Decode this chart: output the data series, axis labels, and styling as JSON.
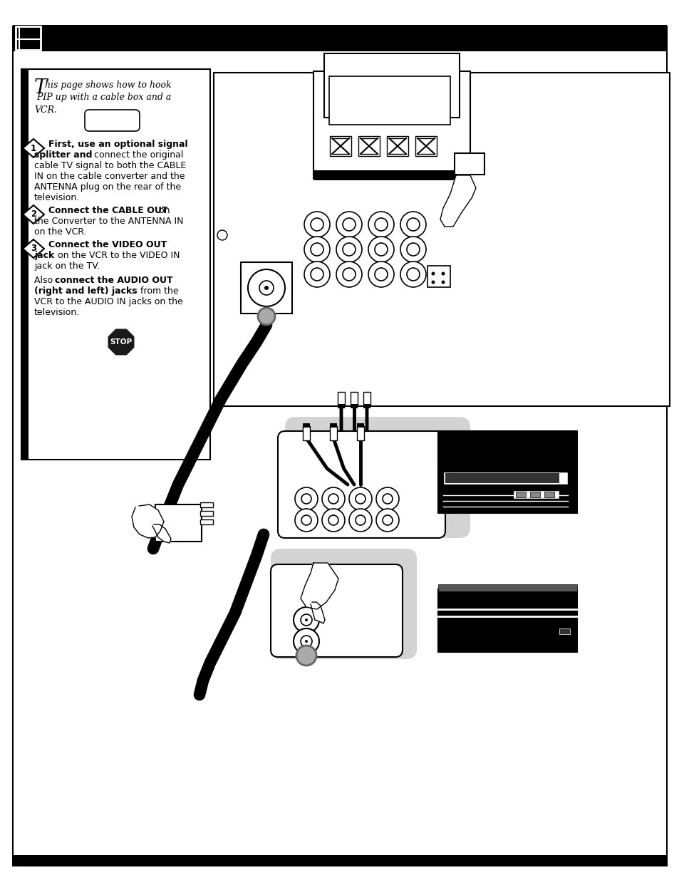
{
  "page_bg": "#ffffff",
  "title_text1": "his page shows how to hook",
  "title_text2": " PIP up with a cable box and a",
  "title_text3": "VCR.",
  "step1_line1_bold": "First, use an optional signal",
  "step1_line2_bold": "splitter and",
  "step1_line2_rest": " connect the original",
  "step1_line3": "cable TV signal to both the CABLE",
  "step1_line4": "IN on the cable converter and the",
  "step1_line5": "ANTENNA plug on the rear of the",
  "step1_line6": "television.",
  "step2_line1_bold": "Connect the CABLE OUT",
  "step2_line1_rest": " on",
  "step2_line2": "the Converter to the ANTENNA IN",
  "step2_line3": "on the VCR.",
  "step3_line1_bold": "Connect the VIDEO OUT",
  "step3_line2_bold": "jack",
  "step3_line2_rest": " on the VCR to the VIDEO IN",
  "step3_line3": "jack on the TV.",
  "step4_line1a": "Also ",
  "step4_line1_bold": "connect the AUDIO OUT",
  "step4_line2_bold": "(right and left) jacks",
  "step4_line2_rest": " from the",
  "step4_line3": "VCR to the AUDIO IN jacks on the",
  "step4_line4": "television."
}
